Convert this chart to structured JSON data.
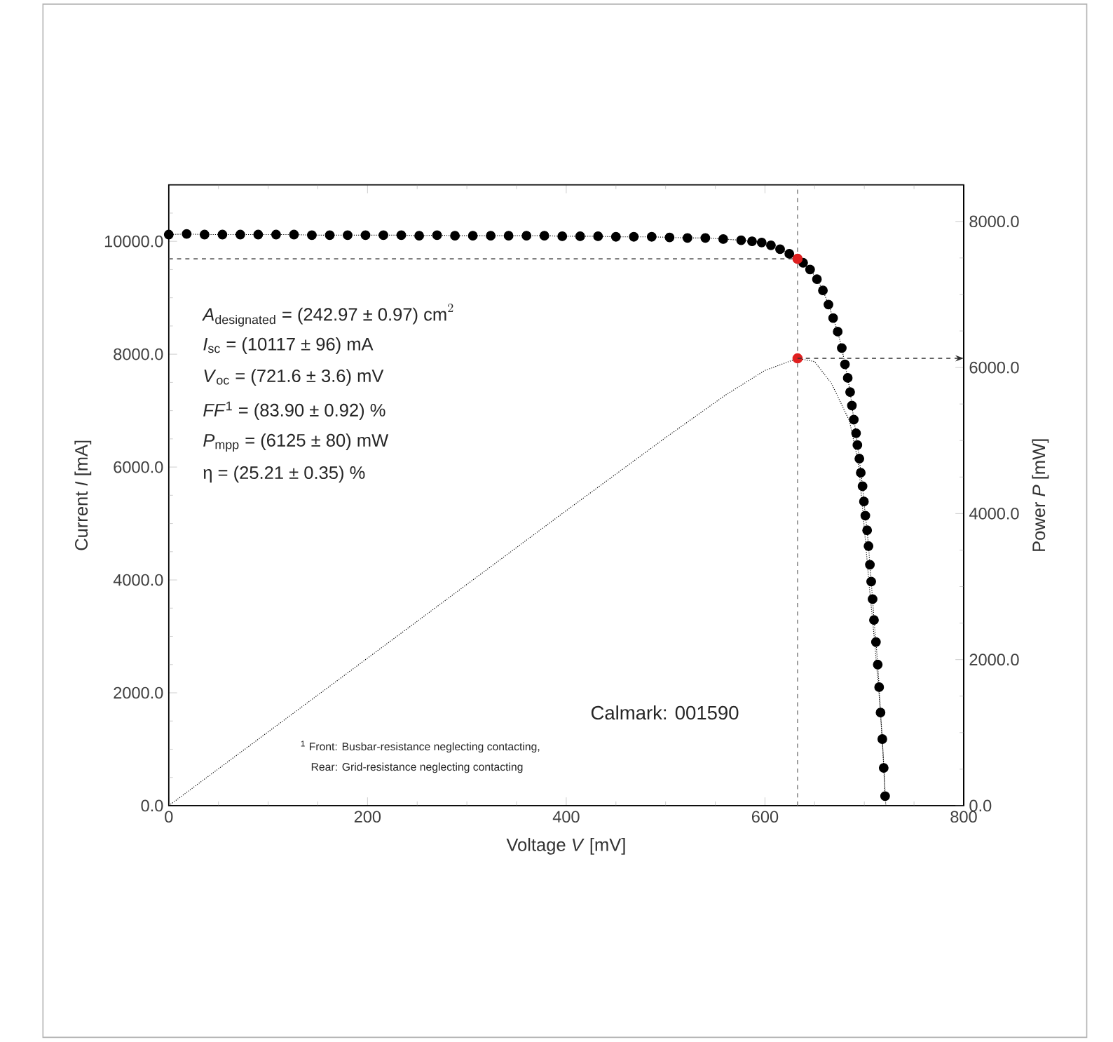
{
  "chart_data": {
    "type": "line",
    "xlabel": "Voltage *V* [mV]",
    "ylabel": "Current *I* [mA]",
    "y2label": "Power *P* [mW]",
    "xlim": [
      0,
      800
    ],
    "ylim": [
      0,
      11000
    ],
    "y2lim": [
      0,
      8500
    ],
    "xticks": [
      {
        "value": 0,
        "label": "0"
      },
      {
        "value": 200,
        "label": "200"
      },
      {
        "value": 400,
        "label": "400"
      },
      {
        "value": 600,
        "label": "600"
      },
      {
        "value": 800,
        "label": "800"
      },
      {
        "value": 50,
        "label": null
      },
      {
        "value": 100,
        "label": null
      },
      {
        "value": 150,
        "label": null
      },
      {
        "value": 250,
        "label": null
      },
      {
        "value": 300,
        "label": null
      },
      {
        "value": 350,
        "label": null
      },
      {
        "value": 450,
        "label": null
      },
      {
        "value": 500,
        "label": null
      },
      {
        "value": 550,
        "label": null
      },
      {
        "value": 650,
        "label": null
      },
      {
        "value": 700,
        "label": null
      },
      {
        "value": 750,
        "label": null
      }
    ],
    "yticks": [
      {
        "value": 0,
        "label": "0.0"
      },
      {
        "value": 2000,
        "label": "2000.0"
      },
      {
        "value": 4000,
        "label": "4000.0"
      },
      {
        "value": 6000,
        "label": "6000.0"
      },
      {
        "value": 8000,
        "label": "8000.0"
      },
      {
        "value": 10000,
        "label": "10000.0"
      },
      {
        "value": 500,
        "label": null
      },
      {
        "value": 1000,
        "label": null
      },
      {
        "value": 1500,
        "label": null
      },
      {
        "value": 2500,
        "label": null
      },
      {
        "value": 3000,
        "label": null
      },
      {
        "value": 3500,
        "label": null
      },
      {
        "value": 4500,
        "label": null
      },
      {
        "value": 5000,
        "label": null
      },
      {
        "value": 5500,
        "label": null
      },
      {
        "value": 6500,
        "label": null
      },
      {
        "value": 7000,
        "label": null
      },
      {
        "value": 7500,
        "label": null
      },
      {
        "value": 8500,
        "label": null
      },
      {
        "value": 9000,
        "label": null
      },
      {
        "value": 9500,
        "label": null
      },
      {
        "value": 10500,
        "label": null
      }
    ],
    "y2ticks": [
      {
        "value": 0,
        "label": "0.0"
      },
      {
        "value": 2000,
        "label": "2000.0"
      },
      {
        "value": 4000,
        "label": "4000.0"
      },
      {
        "value": 6000,
        "label": "6000.0"
      },
      {
        "value": 8000,
        "label": "8000.0"
      },
      {
        "value": 500,
        "label": null
      },
      {
        "value": 1000,
        "label": null
      },
      {
        "value": 1500,
        "label": null
      },
      {
        "value": 2500,
        "label": null
      },
      {
        "value": 3000,
        "label": null
      },
      {
        "value": 3500,
        "label": null
      },
      {
        "value": 4500,
        "label": null
      },
      {
        "value": 5000,
        "label": null
      },
      {
        "value": 5500,
        "label": null
      },
      {
        "value": 6500,
        "label": null
      },
      {
        "value": 7000,
        "label": null
      },
      {
        "value": 7500,
        "label": null
      }
    ],
    "series": [
      {
        "color": "#000000",
        "marker": "circle",
        "line_style": "dotted",
        "x": [
          0,
          18,
          36,
          54,
          72,
          90,
          108,
          126,
          144,
          162,
          180,
          198,
          216,
          234,
          252,
          270,
          288,
          306,
          324,
          342,
          360,
          378,
          396,
          414,
          432,
          450,
          468,
          486,
          504,
          522,
          540,
          558,
          576,
          587,
          596.7,
          606,
          615.2,
          624.5,
          632.8,
          638.4,
          645.4,
          652.3,
          658.3,
          663.9,
          668.6,
          673.2,
          677.3,
          680.5,
          683.3,
          685.7,
          687.5,
          689.4,
          691.7,
          693,
          695,
          696.4,
          698.2,
          699.6,
          701,
          702.8,
          704.2,
          705.6,
          706.9,
          708.3,
          709.7,
          711.7,
          713.5,
          714.9,
          716.3,
          718.1,
          719.5,
          720.9
        ],
        "values": [
          10120,
          10130,
          10120,
          10120,
          10120,
          10120,
          10120,
          10120,
          10110,
          10110,
          10110,
          10110,
          10110,
          10110,
          10100,
          10110,
          10100,
          10100,
          10100,
          10100,
          10100,
          10100,
          10090,
          10090,
          10090,
          10080,
          10080,
          10080,
          10070,
          10060,
          10060,
          10040,
          10020,
          10000,
          9980,
          9930,
          9860,
          9780,
          9690,
          9620,
          9500,
          9330,
          9130,
          8880,
          8640,
          8400,
          8110,
          7820,
          7580,
          7330,
          7090,
          6840,
          6600,
          6390,
          6150,
          5900,
          5660,
          5390,
          5140,
          4880,
          4600,
          4270,
          3970,
          3660,
          3290,
          2900,
          2500,
          2100,
          1650,
          1180,
          670,
          170
        ]
      },
      {
        "axis": "y2",
        "color": "#000000",
        "line_style": "dotted",
        "x": [
          0,
          100,
          200,
          300,
          400,
          500,
          560,
          600,
          632.8,
          650,
          667,
          685,
          694,
          700,
          705,
          710,
          715,
          719,
          721.6
        ],
        "values": [
          0,
          1010,
          2020,
          3030,
          4040,
          5040,
          5620,
          5960,
          6125,
          6080,
          5780,
          5270,
          4700,
          3800,
          3000,
          2300,
          1500,
          700,
          0
        ]
      },
      {
        "type": "scatter",
        "color": "#e02020",
        "marker": "circle",
        "x": [
          632.8
        ],
        "values": [
          9690
        ]
      },
      {
        "type": "scatter",
        "axis": "y2",
        "color": "#e02020",
        "marker": "circle",
        "x": [
          632.8
        ],
        "values": [
          6125
        ]
      }
    ],
    "ref_lines": [
      {
        "axis": "x",
        "value": 632.8,
        "color": "#606060",
        "line_style": "dashed"
      },
      {
        "axis": "y",
        "value": 9690,
        "color": "#606060",
        "line_style": "dashed"
      },
      {
        "axis": "y2",
        "value": 6125,
        "color": "#303030",
        "line_style": "dashed"
      }
    ],
    "annotations": [
      "\\textit{A}_{\\text{designated}}\\text{ = (242.97 ± 0.97) cm}^{2}",
      "*I*$_{sc}$ = (10117 ± 96) mA",
      "*V*$_{oc}$ = (721.6 ± 3.6) mV",
      "*FF*$^{1}$ = (83.90 ± 0.92) %",
      "*P*$_{mpp}$ = (6125 ± 80) mW",
      "η = (25.21 ± 0.35) %",
      "Calmark: 001590",
      "$^{1}$ Front: Busbar-resistance neglecting contacting,",
      "Rear: Grid-resistance neglecting contacting"
    ]
  }
}
